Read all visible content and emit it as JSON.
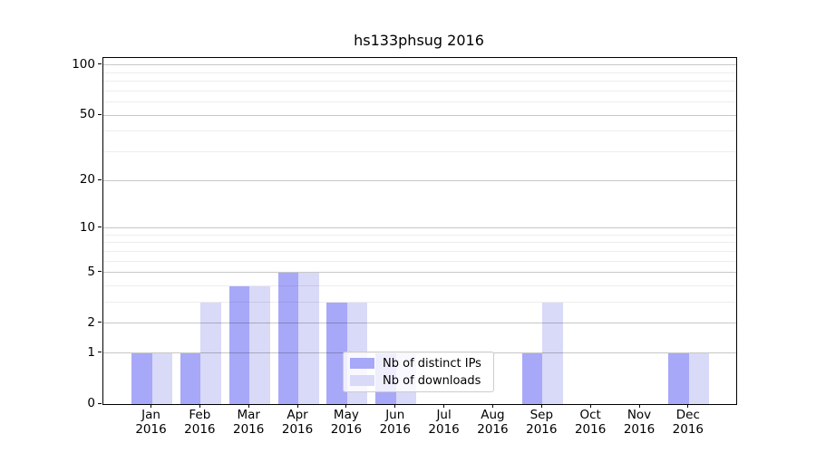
{
  "chart_data": {
    "type": "bar",
    "title": "hs133phsug 2016",
    "categories": [
      "Jan 2016",
      "Feb 2016",
      "Mar 2016",
      "Apr 2016",
      "May 2016",
      "Jun 2016",
      "Jul 2016",
      "Aug 2016",
      "Sep 2016",
      "Oct 2016",
      "Nov 2016",
      "Dec 2016"
    ],
    "series": [
      {
        "name": "Nb of distinct IPs",
        "color": "#a8a8f8",
        "values": [
          1,
          1,
          4,
          5,
          3,
          1,
          0,
          0,
          1,
          0,
          0,
          1
        ]
      },
      {
        "name": "Nb of downloads",
        "color": "#d9d9f8",
        "values": [
          1,
          3,
          4,
          5,
          3,
          1,
          0,
          0,
          3,
          0,
          0,
          1
        ]
      }
    ],
    "yscale": "log1p",
    "ylim": [
      0,
      110.3
    ],
    "y_ticks": [
      0,
      1,
      2,
      5,
      10,
      20,
      50,
      100
    ],
    "y_minor_gridlines": [
      3,
      4,
      6,
      7,
      8,
      9,
      30,
      40,
      60,
      70,
      80,
      90
    ],
    "grid": "on",
    "legend_position": "inside lower-center"
  },
  "colors": {
    "grid_major": "rgba(0,0,0,0.22)",
    "grid_minor": "rgba(0,0,0,0.07)",
    "spine": "#000000",
    "legend_border": "#cccccc",
    "background": "#ffffff"
  }
}
